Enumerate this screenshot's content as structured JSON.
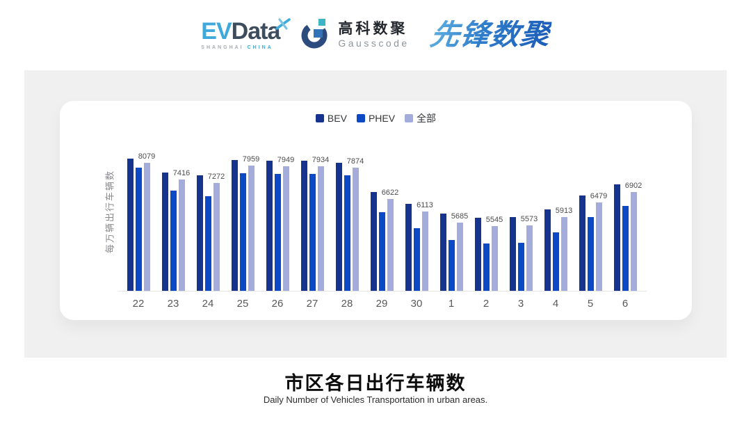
{
  "header": {
    "evdata": {
      "ev": "EV",
      "data": "Data",
      "sub_left": "SHANGHAI",
      "sub_right": "CHINA"
    },
    "gausscode": {
      "cn": "高科数聚",
      "en": "Gausscode"
    },
    "xianfeng": "先锋数聚"
  },
  "colors": {
    "bev": "#16338e",
    "phev": "#0c4ac5",
    "all": "#a3acdb",
    "panel_bg": "#f0f0f1",
    "axis_line": "#e4e4e7",
    "evdata_blue": "#3fa9db",
    "evdata_dark": "#3e4d5d",
    "gauss_dark_blue": "#2b4a7d",
    "gauss_teal": "#3fb4c4"
  },
  "chart_data": {
    "type": "bar",
    "title": "市区各日出行车辆数",
    "subtitle": "Daily Number of Vehicles Transportation in urban areas.",
    "categories": [
      "22",
      "23",
      "24",
      "25",
      "26",
      "27",
      "28",
      "29",
      "30",
      "1",
      "2",
      "3",
      "4",
      "5",
      "6"
    ],
    "series": [
      {
        "name": "BEV",
        "color": "#16338e",
        "values": [
          8240,
          7690,
          7570,
          8190,
          8150,
          8170,
          8080,
          6920,
          6430,
          6040,
          5870,
          5900,
          6220,
          6780,
          7220
        ]
      },
      {
        "name": "PHEV",
        "color": "#0c4ac5",
        "values": [
          7870,
          6970,
          6750,
          7660,
          7630,
          7620,
          7570,
          6090,
          5460,
          4990,
          4850,
          4880,
          5290,
          5900,
          6340
        ]
      },
      {
        "name": "全部",
        "color": "#a3acdb",
        "values": [
          8079,
          7416,
          7272,
          7959,
          7949,
          7934,
          7874,
          6622,
          6113,
          5685,
          5545,
          5573,
          5913,
          6479,
          6902
        ]
      }
    ],
    "label_series": "全部",
    "xlabel": "",
    "ylabel": "每万辆出行车辆数",
    "ylim": [
      2950,
      9300
    ],
    "grid": false,
    "legend_position": "top",
    "y_axis_ticks_visible": false
  },
  "footer": {
    "title": "市区各日出行车辆数",
    "subtitle": "Daily Number of Vehicles Transportation in urban areas."
  }
}
